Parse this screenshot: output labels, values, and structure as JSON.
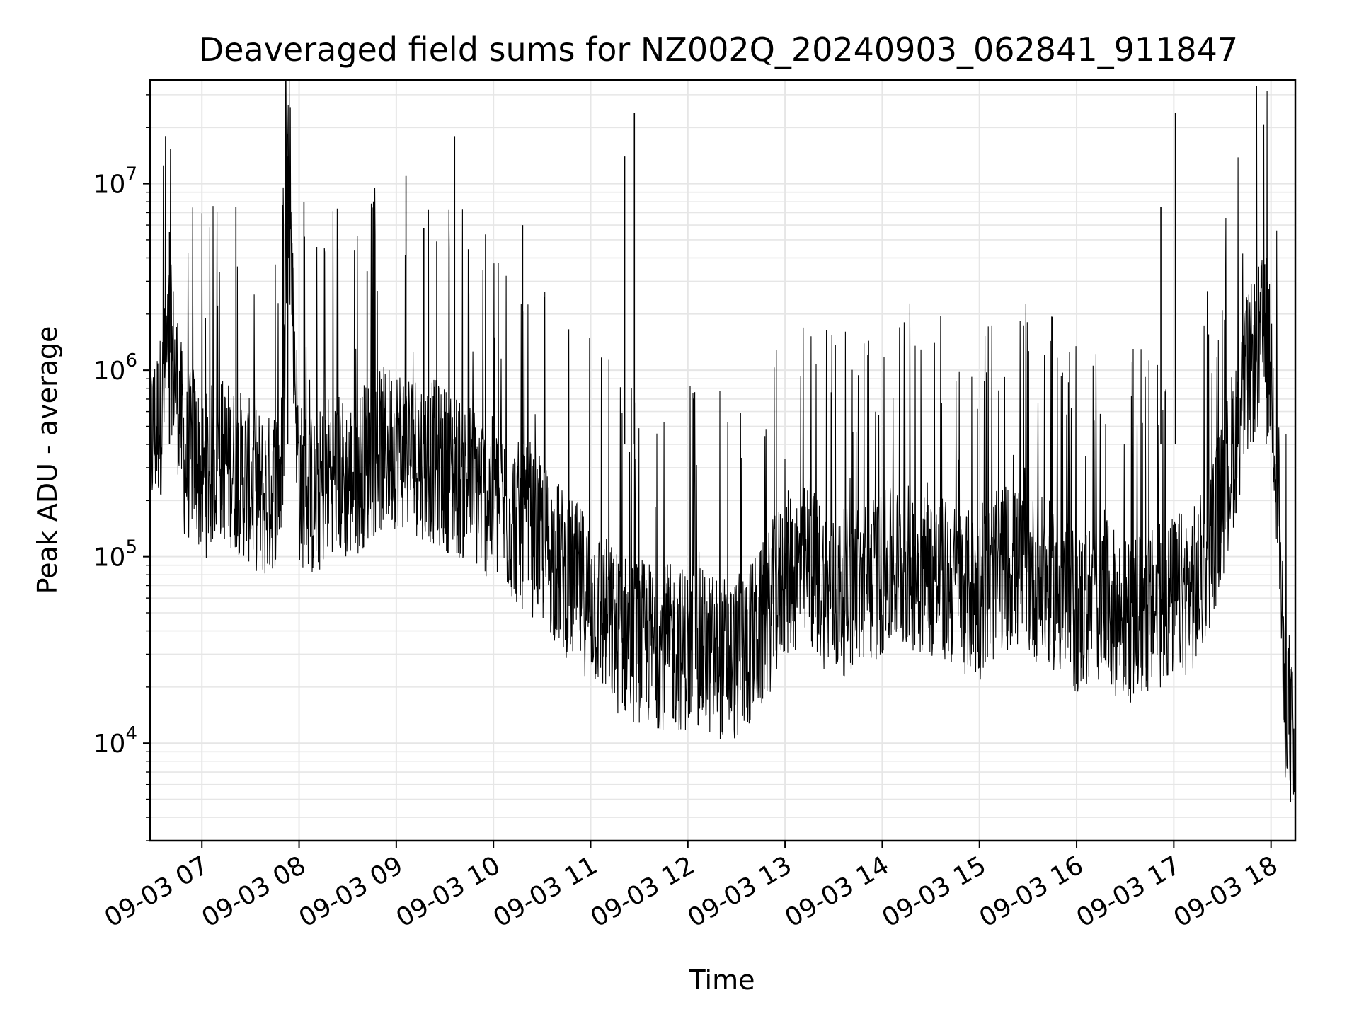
{
  "chart_data": {
    "type": "line",
    "title": "Deaveraged field sums for NZ002Q_20240903_062841_911847",
    "xlabel": "Time",
    "ylabel": "Peak ADU - average",
    "yscale": "log",
    "xlim": [
      "09-03 06:28",
      "09-03 18:15"
    ],
    "ylim": [
      3000,
      36000000
    ],
    "grid": true,
    "line_color": "#000000",
    "x_ticks": [
      "09-03 07",
      "09-03 08",
      "09-03 09",
      "09-03 10",
      "09-03 11",
      "09-03 12",
      "09-03 13",
      "09-03 14",
      "09-03 15",
      "09-03 16",
      "09-03 17",
      "09-03 18"
    ],
    "y_ticks": [
      {
        "base": "10",
        "exp": "4",
        "value": 10000
      },
      {
        "base": "10",
        "exp": "5",
        "value": 100000
      },
      {
        "base": "10",
        "exp": "6",
        "value": 1000000
      },
      {
        "base": "10",
        "exp": "7",
        "value": 10000000
      }
    ],
    "series": [
      {
        "x": [
          "09-03 06:28",
          "09-03 06:35",
          "09-03 06:40",
          "09-03 06:45",
          "09-03 06:50",
          "09-03 06:55",
          "09-03 07:00",
          "09-03 07:10",
          "09-03 07:20",
          "09-03 07:30",
          "09-03 07:40",
          "09-03 07:50",
          "09-03 07:53",
          "09-03 08:00",
          "09-03 08:10",
          "09-03 08:20",
          "09-03 08:30",
          "09-03 08:45",
          "09-03 09:00",
          "09-03 09:15",
          "09-03 09:30",
          "09-03 09:45",
          "09-03 10:00",
          "09-03 10:15",
          "09-03 10:30",
          "09-03 10:45",
          "09-03 11:00",
          "09-03 11:15",
          "09-03 11:30",
          "09-03 11:45",
          "09-03 12:00",
          "09-03 12:15",
          "09-03 12:30",
          "09-03 12:45",
          "09-03 13:00",
          "09-03 13:15",
          "09-03 13:30",
          "09-03 13:45",
          "09-03 14:00",
          "09-03 14:15",
          "09-03 14:30",
          "09-03 14:45",
          "09-03 15:00",
          "09-03 15:15",
          "09-03 15:30",
          "09-03 15:45",
          "09-03 16:00",
          "09-03 16:15",
          "09-03 16:30",
          "09-03 16:45",
          "09-03 17:00",
          "09-03 17:15",
          "09-03 17:30",
          "09-03 17:45",
          "09-03 17:55",
          "09-03 18:00",
          "09-03 18:05",
          "09-03 18:08",
          "09-03 18:10",
          "09-03 18:15"
        ],
        "y": [
          400000,
          600000,
          1500000,
          800000,
          300000,
          400000,
          250000,
          350000,
          300000,
          250000,
          200000,
          300000,
          14000000,
          250000,
          200000,
          300000,
          250000,
          350000,
          400000,
          350000,
          300000,
          250000,
          200000,
          150000,
          120000,
          80000,
          60000,
          40000,
          35000,
          33000,
          32000,
          30000,
          28000,
          40000,
          80000,
          90000,
          60000,
          70000,
          80000,
          90000,
          80000,
          70000,
          60000,
          90000,
          80000,
          70000,
          50000,
          60000,
          45000,
          50000,
          60000,
          70000,
          200000,
          900000,
          1500000,
          1000000,
          200000,
          15000,
          20000,
          6000
        ]
      }
    ],
    "spikes": [
      {
        "x": "09-03 06:40",
        "y": 5500000
      },
      {
        "x": "09-03 07:21",
        "y": 7500000
      },
      {
        "x": "09-03 07:53",
        "y": 14000000
      },
      {
        "x": "09-03 08:03",
        "y": 8000000
      },
      {
        "x": "09-03 08:42",
        "y": 3400000
      },
      {
        "x": "09-03 09:06",
        "y": 11000000
      },
      {
        "x": "09-03 09:17",
        "y": 5800000
      },
      {
        "x": "09-03 09:25",
        "y": 4900000
      },
      {
        "x": "09-03 09:36",
        "y": 18000000
      },
      {
        "x": "09-03 10:18",
        "y": 6000000
      },
      {
        "x": "09-03 11:21",
        "y": 14000000
      },
      {
        "x": "09-03 11:27",
        "y": 24000000
      },
      {
        "x": "09-03 16:52",
        "y": 7500000
      },
      {
        "x": "09-03 17:01",
        "y": 24000000
      },
      {
        "x": "09-03 17:57",
        "y": 4000000
      }
    ]
  }
}
